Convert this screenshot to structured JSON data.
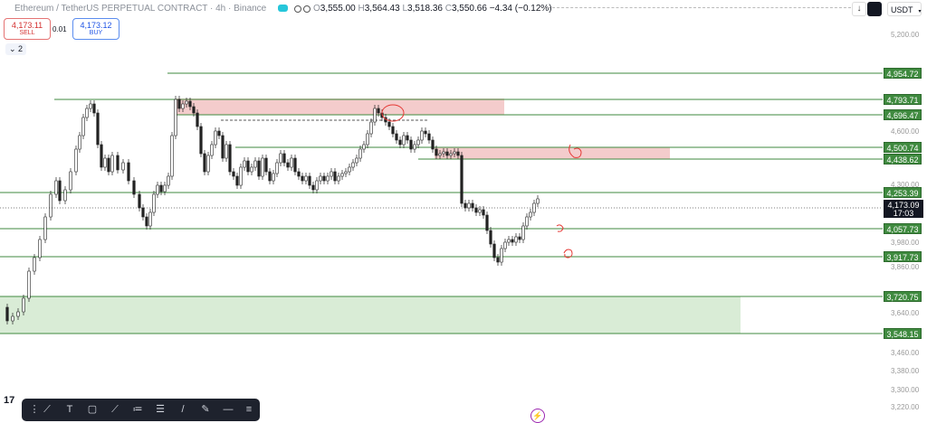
{
  "header": {
    "symbol_title": "Ethereum / TetherUS PERPETUAL CONTRACT · 4h · Binance",
    "ohlc": {
      "o_label": "O",
      "o": "3,555.00",
      "h_label": "H",
      "h": "3,564.43",
      "l_label": "L",
      "l": "3,518.36",
      "c_label": "C",
      "c": "3,550.66",
      "change": "−4.34 (−0.12%)"
    },
    "currency": "USDT"
  },
  "trade": {
    "sell_price": "4,173.11",
    "sell_label": "SELL",
    "spread": "0.01",
    "buy_price": "4,173.12",
    "buy_label": "BUY"
  },
  "indicators_count": "2",
  "price_axis": {
    "ticks": [
      "5,200.00",
      "4,600.00",
      "4,300.00",
      "3,980.00",
      "3,860.00",
      "3,640.00",
      "3,460.00",
      "3,380.00",
      "3,300.00",
      "3,220.00"
    ],
    "levels": [
      {
        "price": "4,954.72",
        "color": "#3f8a3f"
      },
      {
        "price": "4,793.71",
        "color": "#3f8a3f"
      },
      {
        "price": "4,696.47",
        "color": "#3f8a3f"
      },
      {
        "price": "4,500.74",
        "color": "#3f8a3f"
      },
      {
        "price": "4,438.62",
        "color": "#3f8a3f"
      },
      {
        "price": "4,253.39",
        "color": "#3f8a3f"
      },
      {
        "price": "4,057.73",
        "color": "#3f8a3f"
      },
      {
        "price": "3,917.73",
        "color": "#3f8a3f"
      },
      {
        "price": "3,720.75",
        "color": "#3f8a3f"
      },
      {
        "price": "3,548.15",
        "color": "#3f8a3f"
      }
    ],
    "current_price": "4,173.09",
    "countdown": "17:03"
  },
  "zones": {
    "supply_color": "#f4cccc",
    "demand_color": "#d9ecd6"
  },
  "toolbar": {
    "icons": [
      "trend-line-icon",
      "text-icon",
      "rectangle-icon",
      "path-icon",
      "parallel-channel-icon",
      "fib-icon",
      "line-icon",
      "brush-icon",
      "horizontal-line-icon",
      "menu-icon"
    ]
  },
  "branding": {
    "logo": "17"
  }
}
